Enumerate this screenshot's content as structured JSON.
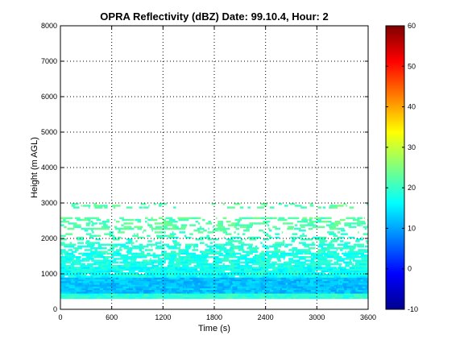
{
  "chart_data": {
    "type": "heatmap",
    "title": "OPRA Reflectivity (dBZ)  Date: 99.10.4, Hour: 2",
    "xlabel": "Time (s)",
    "ylabel": "Height (m AGL)",
    "xlim": [
      0,
      3600
    ],
    "ylim": [
      0,
      8000
    ],
    "x_ticks": [
      "0",
      "600",
      "1200",
      "1800",
      "2400",
      "3000",
      "3600"
    ],
    "y_ticks": [
      "0",
      "1000",
      "2000",
      "3000",
      "4000",
      "5000",
      "6000",
      "7000",
      "8000"
    ],
    "grid": true,
    "colorbar": {
      "colormap": "jet",
      "range": [
        -10,
        60
      ],
      "ticks": [
        "-10",
        "0",
        "10",
        "20",
        "30",
        "40",
        "50",
        "60"
      ]
    },
    "layers": [
      {
        "height_range": [
          0,
          300
        ],
        "coverage": 0.0
      },
      {
        "height_range": [
          300,
          450
        ],
        "dbz": 19,
        "coverage": 1.0
      },
      {
        "height_range": [
          450,
          900
        ],
        "dbz": 12,
        "coverage": 1.0
      },
      {
        "height_range": [
          900,
          1200
        ],
        "dbz": 17,
        "coverage": 0.95
      },
      {
        "height_range": [
          1200,
          1600
        ],
        "dbz": 18,
        "coverage": 0.8
      },
      {
        "height_range": [
          1600,
          1850
        ],
        "dbz": 19,
        "coverage": 0.55
      },
      {
        "height_range": [
          1850,
          2050
        ],
        "dbz": 20,
        "coverage": 0.35
      },
      {
        "height_range": [
          2050,
          2250
        ],
        "dbz": 21,
        "coverage": 0.2
      },
      {
        "height_range": [
          2250,
          2600
        ],
        "dbz": 22,
        "coverage": 0.45
      },
      {
        "height_range": [
          2600,
          2850
        ],
        "coverage": 0.0
      },
      {
        "height_range": [
          2850,
          3000
        ],
        "dbz": 22,
        "coverage": 0.25
      }
    ]
  }
}
